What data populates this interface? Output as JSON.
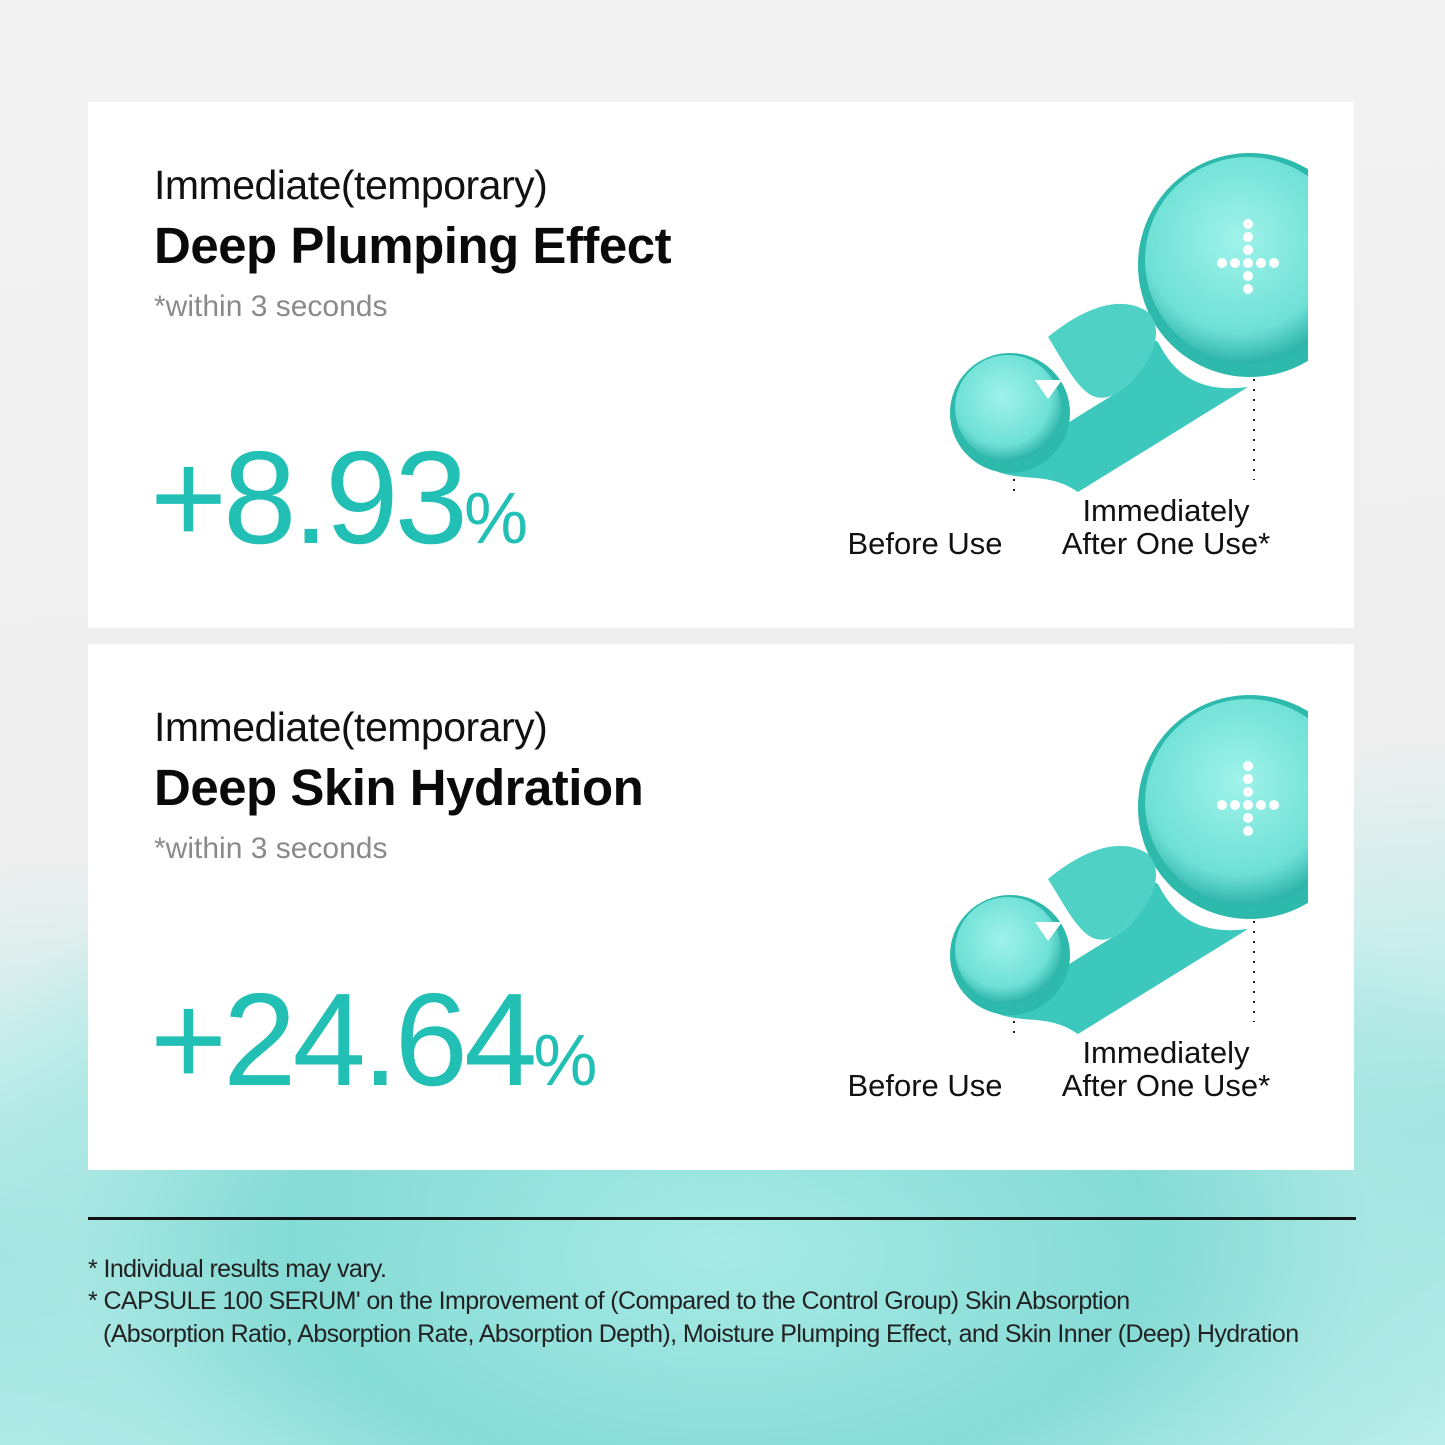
{
  "accent_color": "#22c0b4",
  "cards": [
    {
      "pretitle": "Immediate(temporary)",
      "title": "Deep Plumping Effect",
      "note": "*within 3 seconds",
      "value": "+8.93",
      "unit": "%",
      "before_label": "Before Use",
      "after_label_line1": "Immediately",
      "after_label_line2": "After One Use*"
    },
    {
      "pretitle": "Immediate(temporary)",
      "title": "Deep Skin Hydration",
      "note": "*within 3 seconds",
      "value": "+24.64",
      "unit": "%",
      "before_label": "Before Use",
      "after_label_line1": "Immediately",
      "after_label_line2": "After One Use*"
    }
  ],
  "footnotes": [
    "* Individual results may vary.",
    "* CAPSULE 100 SERUM' on the Improvement of (Compared to the Control Group) Skin Absorption",
    "(Absorption Ratio, Absorption Rate, Absorption Depth), Moisture Plumping Effect, and Skin Inner (Deep) Hydration"
  ]
}
